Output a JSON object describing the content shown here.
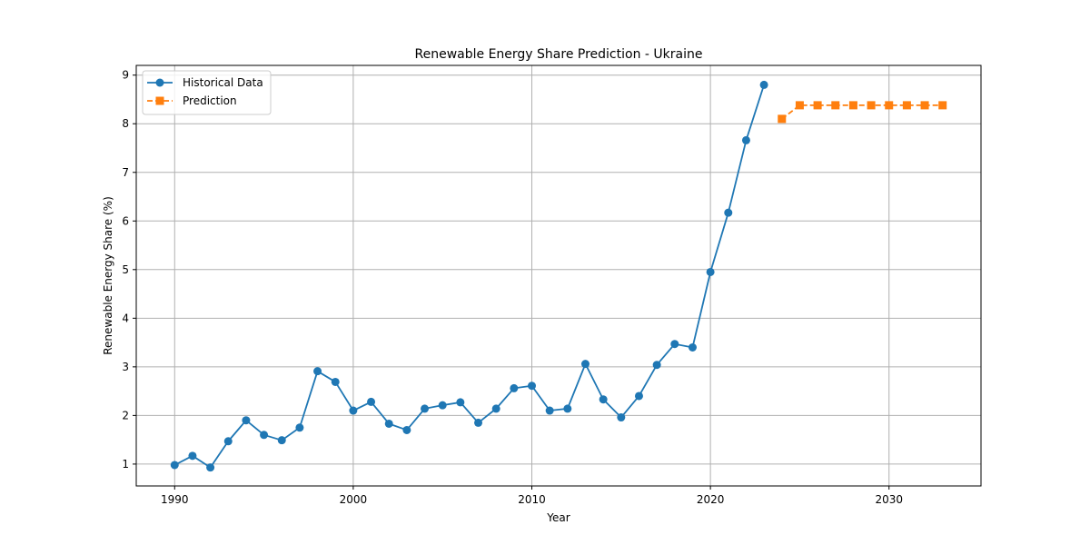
{
  "chart_data": {
    "type": "line",
    "title": "Renewable Energy Share Prediction - Ukraine",
    "xlabel": "Year",
    "ylabel": "Renewable Energy Share (%)",
    "xlim": [
      1987.85,
      2035.15
    ],
    "ylim": [
      0.55,
      9.2
    ],
    "x_ticks": [
      1990,
      2000,
      2010,
      2020,
      2030
    ],
    "y_ticks": [
      1,
      2,
      3,
      4,
      5,
      6,
      7,
      8,
      9
    ],
    "grid": true,
    "legend_position": "top-left",
    "series": [
      {
        "name": "Historical Data",
        "color": "#1f77b4",
        "marker": "circle",
        "linestyle": "solid",
        "x": [
          1990,
          1991,
          1992,
          1993,
          1994,
          1995,
          1996,
          1997,
          1998,
          1999,
          2000,
          2001,
          2002,
          2003,
          2004,
          2005,
          2006,
          2007,
          2008,
          2009,
          2010,
          2011,
          2012,
          2013,
          2014,
          2015,
          2016,
          2017,
          2018,
          2019,
          2020,
          2021,
          2022,
          2023
        ],
        "values": [
          0.98,
          1.17,
          0.93,
          1.47,
          1.9,
          1.6,
          1.49,
          1.75,
          2.91,
          2.69,
          2.1,
          2.28,
          1.83,
          1.7,
          2.14,
          2.21,
          2.27,
          1.85,
          2.14,
          2.56,
          2.61,
          2.1,
          2.14,
          3.06,
          2.33,
          1.96,
          2.4,
          3.04,
          3.47,
          3.4,
          4.95,
          6.17,
          7.66,
          8.8
        ]
      },
      {
        "name": "Prediction",
        "color": "#ff7f0e",
        "marker": "square",
        "linestyle": "dashed",
        "x": [
          2024,
          2025,
          2026,
          2027,
          2028,
          2029,
          2030,
          2031,
          2032,
          2033
        ],
        "values": [
          8.1,
          8.38,
          8.38,
          8.38,
          8.38,
          8.38,
          8.38,
          8.38,
          8.38,
          8.38
        ]
      }
    ]
  }
}
